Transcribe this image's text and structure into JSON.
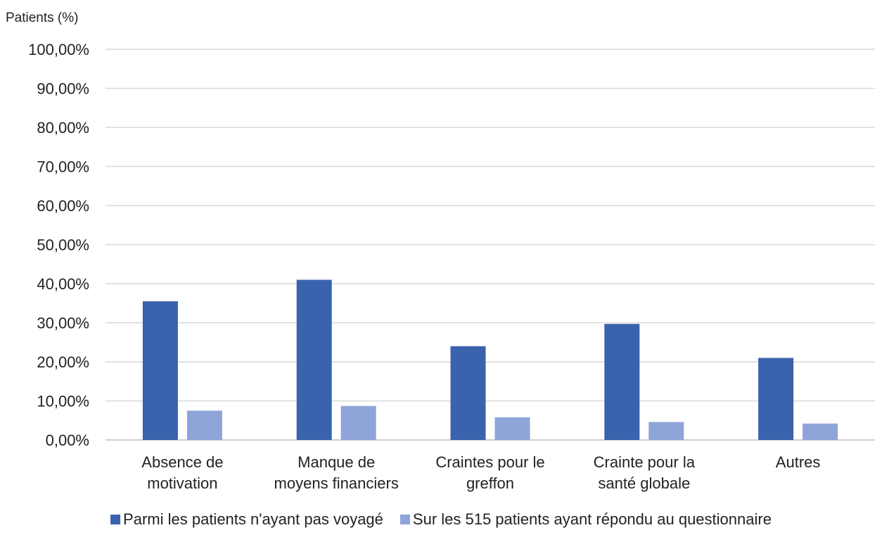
{
  "chart_data": {
    "type": "bar",
    "title": "",
    "xlabel": "",
    "ylabel": "Patients (%)",
    "ylim": [
      0,
      100
    ],
    "yticks": [
      "0,00%",
      "10,00%",
      "20,00%",
      "30,00%",
      "40,00%",
      "50,00%",
      "60,00%",
      "70,00%",
      "80,00%",
      "90,00%",
      "100,00%"
    ],
    "categories": [
      [
        "Absence de",
        "motivation"
      ],
      [
        "Manque de",
        "moyens financiers"
      ],
      [
        "Craintes pour le",
        "greffon"
      ],
      [
        "Crainte pour la",
        "santé globale"
      ],
      [
        "Autres"
      ]
    ],
    "series": [
      {
        "name": "Parmi les patients n'ayant pas voyagé",
        "color": "#3a62ad",
        "values": [
          35.5,
          41.0,
          24.0,
          29.7,
          21.0
        ]
      },
      {
        "name": "Sur les 515 patients ayant répondu au questionnaire",
        "color": "#8fa4d8",
        "values": [
          7.5,
          8.7,
          5.8,
          4.6,
          4.2
        ]
      }
    ],
    "grid": true,
    "legend": "bottom"
  }
}
